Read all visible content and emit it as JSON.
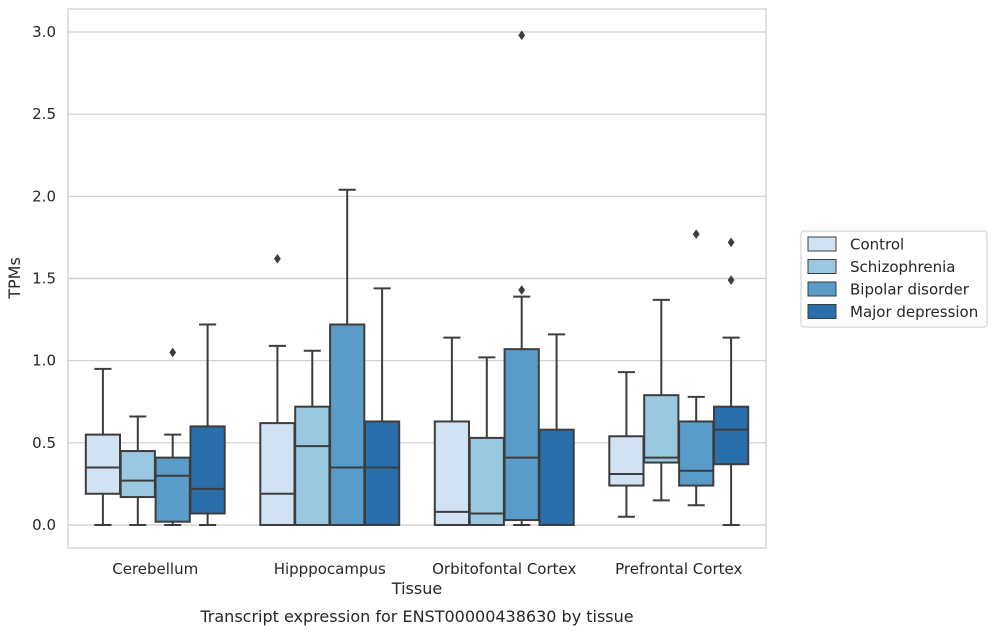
{
  "chart_data": {
    "type": "box",
    "xlabel": "Tissue",
    "ylabel": "TPMs",
    "caption": "Transcript expression for ENST00000438630 by tissue",
    "ylim": [
      -0.14,
      3.14
    ],
    "yticks": [
      "0.0",
      "0.5",
      "1.0",
      "1.5",
      "2.0",
      "2.5",
      "3.0"
    ],
    "grid": "horizontal",
    "legend_position": "right",
    "categories": [
      "Cerebellum",
      "Hipppocampus",
      "Orbitofontal Cortex",
      "Prefrontal Cortex"
    ],
    "series": [
      {
        "name": "Control",
        "color": "#d1e2f2",
        "boxes": [
          {
            "whislo": 0.0,
            "q1": 0.19,
            "med": 0.35,
            "q3": 0.55,
            "whishi": 0.95,
            "fliers": []
          },
          {
            "whislo": 0.0,
            "q1": 0.0,
            "med": 0.19,
            "q3": 0.62,
            "whishi": 1.09,
            "fliers": [
              1.62
            ]
          },
          {
            "whislo": 0.0,
            "q1": 0.0,
            "med": 0.08,
            "q3": 0.63,
            "whishi": 1.14,
            "fliers": []
          },
          {
            "whislo": 0.05,
            "q1": 0.24,
            "med": 0.31,
            "q3": 0.54,
            "whishi": 0.93,
            "fliers": []
          }
        ]
      },
      {
        "name": "Schizophrenia",
        "color": "#9ac8e0",
        "boxes": [
          {
            "whislo": 0.0,
            "q1": 0.17,
            "med": 0.27,
            "q3": 0.45,
            "whishi": 0.66,
            "fliers": []
          },
          {
            "whislo": 0.0,
            "q1": 0.0,
            "med": 0.48,
            "q3": 0.72,
            "whishi": 1.06,
            "fliers": []
          },
          {
            "whislo": 0.0,
            "q1": 0.0,
            "med": 0.07,
            "q3": 0.53,
            "whishi": 1.02,
            "fliers": []
          },
          {
            "whislo": 0.15,
            "q1": 0.38,
            "med": 0.41,
            "q3": 0.79,
            "whishi": 1.37,
            "fliers": []
          }
        ]
      },
      {
        "name": "Bipolar disorder",
        "color": "#5a9cc9",
        "boxes": [
          {
            "whislo": 0.0,
            "q1": 0.02,
            "med": 0.3,
            "q3": 0.41,
            "whishi": 0.55,
            "fliers": [
              1.05
            ]
          },
          {
            "whislo": 0.0,
            "q1": 0.0,
            "med": 0.35,
            "q3": 1.22,
            "whishi": 2.04,
            "fliers": []
          },
          {
            "whislo": 0.0,
            "q1": 0.03,
            "med": 0.41,
            "q3": 1.07,
            "whishi": 1.39,
            "fliers": [
              1.43,
              2.98
            ]
          },
          {
            "whislo": 0.12,
            "q1": 0.24,
            "med": 0.33,
            "q3": 0.63,
            "whishi": 0.78,
            "fliers": [
              1.77
            ]
          }
        ]
      },
      {
        "name": "Major depression",
        "color": "#2a6eac",
        "boxes": [
          {
            "whislo": 0.0,
            "q1": 0.07,
            "med": 0.22,
            "q3": 0.6,
            "whishi": 1.22,
            "fliers": []
          },
          {
            "whislo": 0.0,
            "q1": 0.0,
            "med": 0.35,
            "q3": 0.63,
            "whishi": 1.44,
            "fliers": []
          },
          {
            "whislo": 0.0,
            "q1": 0.0,
            "med": 0.0,
            "q3": 0.58,
            "whishi": 1.16,
            "fliers": []
          },
          {
            "whislo": 0.0,
            "q1": 0.37,
            "med": 0.58,
            "q3": 0.72,
            "whishi": 1.14,
            "fliers": [
              1.49,
              1.72
            ]
          }
        ]
      }
    ]
  }
}
